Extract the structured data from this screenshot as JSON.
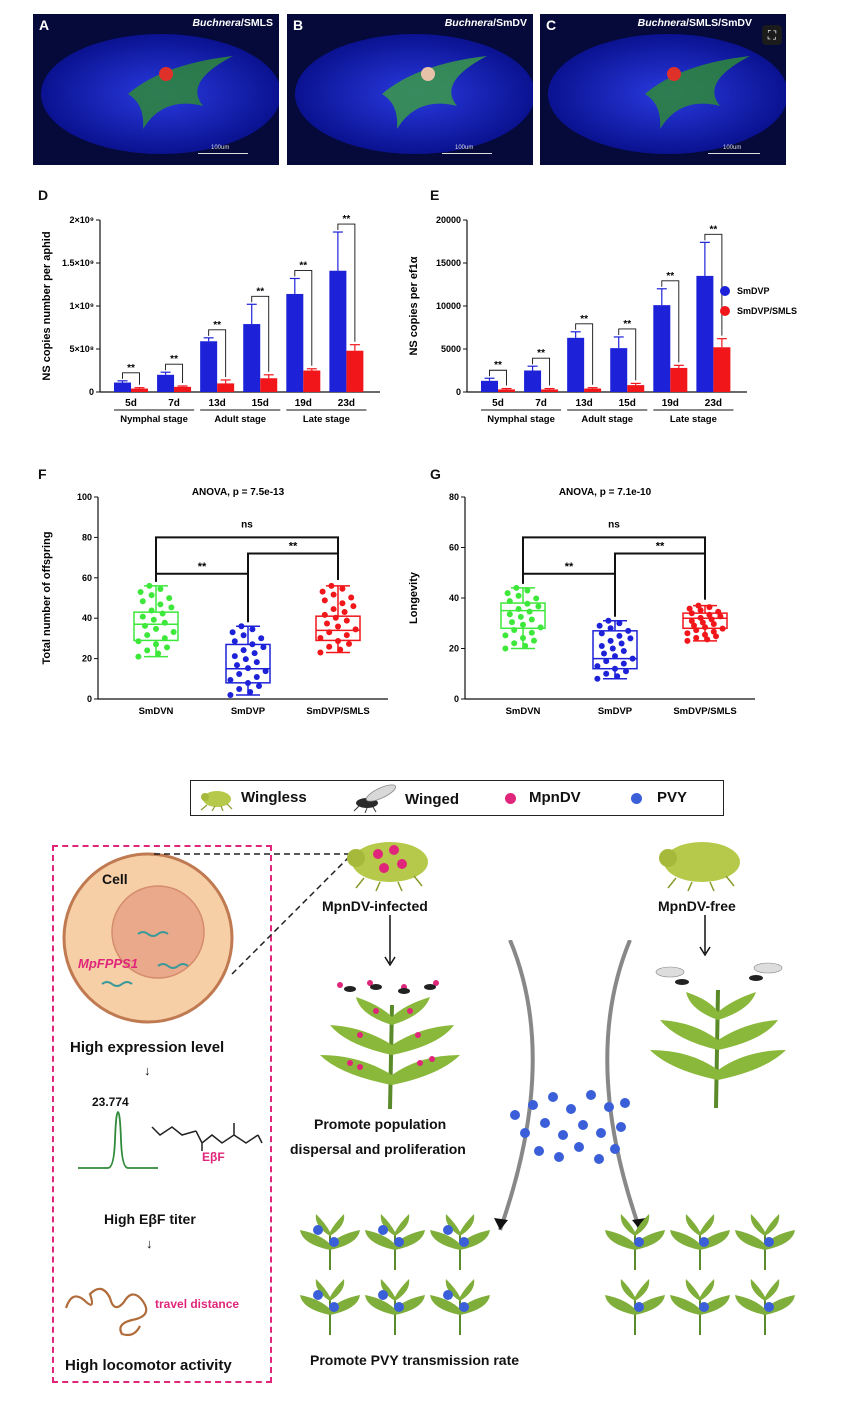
{
  "microscopy": [
    {
      "letter": "A",
      "title_italic": "Buchnera",
      "title_rest": "/SMLS",
      "scale": "100um"
    },
    {
      "letter": "B",
      "title_italic": "Buchnera",
      "title_rest": "/SmDV",
      "scale": "100um"
    },
    {
      "letter": "C",
      "title_italic": "Buchnera",
      "title_rest": "/SMLS/SmDV",
      "scale": "100um"
    }
  ],
  "colors": {
    "smdvp": "#1d22d8",
    "smdvp_smls": "#f0161a",
    "smdvn": "#3de83a",
    "pink": "#e0267a",
    "nucleus": "#eaa98b",
    "cell": "#f7cfa6"
  },
  "chart_data": [
    {
      "id": "D",
      "type": "bar",
      "ylabel": "NS copies number per aphid",
      "categories": [
        "5d",
        "7d",
        "13d",
        "15d",
        "19d",
        "23d"
      ],
      "groups": [
        "Nymphal stage",
        "Adult stage",
        "Late stage"
      ],
      "yticks": [
        "0",
        "5×10⁸",
        "1×10⁹",
        "1.5×10⁹",
        "2×10⁹"
      ],
      "ylim": [
        0,
        2000000000
      ],
      "series": [
        {
          "name": "SmDVP",
          "values": [
            110000000,
            200000000,
            590000000,
            790000000,
            1140000000,
            1410000000
          ],
          "err": [
            20000000,
            30000000,
            40000000,
            230000000,
            180000000,
            450000000
          ]
        },
        {
          "name": "SmDVP/SMLS",
          "values": [
            40000000,
            60000000,
            100000000,
            160000000,
            250000000,
            480000000
          ],
          "err": [
            10000000,
            10000000,
            40000000,
            40000000,
            20000000,
            70000000
          ]
        }
      ],
      "sig": [
        "**",
        "**",
        "**",
        "**",
        "**",
        "**"
      ]
    },
    {
      "id": "E",
      "type": "bar",
      "ylabel": "NS copies per ef1α",
      "categories": [
        "5d",
        "7d",
        "13d",
        "15d",
        "19d",
        "23d"
      ],
      "groups": [
        "Nymphal stage",
        "Adult stage",
        "Late stage"
      ],
      "yticks": [
        "0",
        "5000",
        "10000",
        "15000",
        "20000"
      ],
      "ylim": [
        0,
        20000
      ],
      "series": [
        {
          "name": "SmDVP",
          "values": [
            1300,
            2500,
            6300,
            5100,
            10100,
            13500
          ],
          "err": [
            300,
            500,
            700,
            1300,
            1900,
            3900
          ]
        },
        {
          "name": "SmDVP/SMLS",
          "values": [
            300,
            300,
            400,
            800,
            2800,
            5200
          ],
          "err": [
            100,
            100,
            100,
            200,
            300,
            1000
          ]
        }
      ],
      "sig": [
        "**",
        "**",
        "**",
        "**",
        "**",
        "**"
      ],
      "legend": [
        "SmDVP",
        "SmDVP/SMLS"
      ],
      "legend_position": "right"
    },
    {
      "id": "F",
      "type": "boxplot",
      "title": "ANOVA, p = 7.5e-13",
      "ylabel": "Total number of offspring",
      "categories": [
        "SmDVN",
        "SmDVP",
        "SmDVP/SMLS"
      ],
      "yticks": [
        "0",
        "20",
        "40",
        "60",
        "80",
        "100"
      ],
      "ylim": [
        0,
        100
      ],
      "boxes": [
        {
          "min": 21,
          "q1": 29,
          "median": 37,
          "q3": 43,
          "max": 56
        },
        {
          "min": 2,
          "q1": 8,
          "median": 15,
          "q3": 27,
          "max": 36
        },
        {
          "min": 23,
          "q1": 29,
          "median": 34,
          "q3": 41,
          "max": 56
        }
      ],
      "sig": [
        "ns",
        "**",
        "**"
      ]
    },
    {
      "id": "G",
      "type": "boxplot",
      "title": "ANOVA, p = 7.1e-10",
      "ylabel": "Longevity",
      "categories": [
        "SmDVN",
        "SmDVP",
        "SmDVP/SMLS"
      ],
      "yticks": [
        "0",
        "20",
        "40",
        "60",
        "80"
      ],
      "ylim": [
        0,
        80
      ],
      "boxes": [
        {
          "min": 20,
          "q1": 28,
          "median": 35,
          "q3": 38,
          "max": 44
        },
        {
          "min": 8,
          "q1": 12,
          "median": 16,
          "q3": 27,
          "max": 31
        },
        {
          "min": 23,
          "q1": 28,
          "median": 32,
          "q3": 34,
          "max": 37
        }
      ],
      "sig": [
        "ns",
        "**",
        "**"
      ]
    }
  ],
  "legend": {
    "wingless": "Wingless",
    "winged": "Winged",
    "mpndv": "MpnDV",
    "pvy": "PVY"
  },
  "cell": {
    "cell_label": "Cell",
    "gene": "MpFPPS1",
    "expression": "High expression level",
    "peak_time": "23.774",
    "compound": "EβF",
    "titer": "High EβF titer",
    "travel": "travel distance",
    "locomotor": "High locomotor activity"
  },
  "scheme": {
    "infected": "MpnDV-infected",
    "free": "MpnDV-free",
    "promote1": "Promote population",
    "promote2": "dispersal and proliferation",
    "promote_pvy": "Promote PVY transmission rate"
  }
}
